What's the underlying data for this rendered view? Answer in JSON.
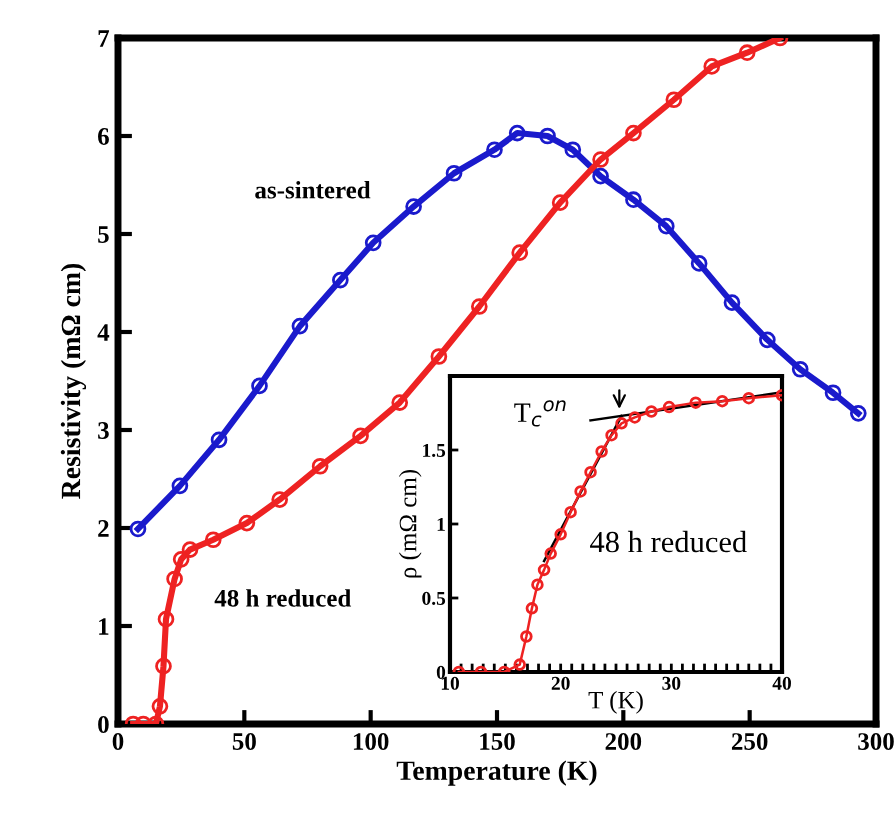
{
  "chart_data": [
    {
      "type": "line",
      "xlabel": "Temperature (K)",
      "ylabel": "Resistivity (mΩ cm)",
      "xlim": [
        0,
        300
      ],
      "xticks": [
        0,
        50,
        100,
        150,
        200,
        250,
        300
      ],
      "ylim": [
        0,
        7
      ],
      "yticks": [
        0,
        1,
        2,
        3,
        4,
        5,
        6,
        7
      ],
      "grid": false,
      "legend": false,
      "marker": "circle",
      "series": [
        {
          "name": "as-sintered",
          "color": "#1a1acc",
          "x": [
            7.9,
            24.5,
            40,
            56,
            72,
            88,
            101,
            117,
            133,
            149,
            158,
            170,
            180,
            191,
            204,
            217,
            230,
            243,
            257,
            270,
            283,
            293
          ],
          "values": [
            1.99,
            2.43,
            2.9,
            3.45,
            4.06,
            4.53,
            4.91,
            5.28,
            5.62,
            5.86,
            6.03,
            6.0,
            5.86,
            5.59,
            5.35,
            5.08,
            4.7,
            4.3,
            3.92,
            3.62,
            3.38,
            3.17
          ]
        },
        {
          "name": "48 h reduced",
          "color": "#ee2222",
          "x": [
            6,
            10,
            15,
            16.6,
            18,
            19,
            22.4,
            25,
            28.5,
            37.7,
            51,
            64,
            80,
            96,
            111.5,
            127,
            143,
            159,
            175,
            191,
            204,
            220,
            235,
            249,
            262
          ],
          "values": [
            0,
            0,
            0,
            0.18,
            0.59,
            1.07,
            1.48,
            1.68,
            1.78,
            1.88,
            2.05,
            2.29,
            2.63,
            2.94,
            3.28,
            3.75,
            4.26,
            4.81,
            5.32,
            5.76,
            6.03,
            6.37,
            6.71,
            6.85,
            7.0
          ]
        }
      ]
    },
    {
      "type": "line",
      "xlabel": "T (K)",
      "ylabel": "ρ (mΩ cm)",
      "xlim": [
        10,
        40
      ],
      "ylim": [
        0,
        2
      ],
      "yticks": [
        0,
        0.5,
        1,
        1.5
      ],
      "grid": false,
      "legend": false,
      "xticks": [
        10,
        {
          "value": 11,
          "label": null
        },
        {
          "value": 12,
          "label": null
        },
        {
          "value": 13,
          "label": null
        },
        {
          "value": 14,
          "label": null
        },
        {
          "value": 15,
          "label": null
        },
        {
          "value": 16,
          "label": null
        },
        {
          "value": 17,
          "label": null
        },
        {
          "value": 18,
          "label": null
        },
        {
          "value": 19,
          "label": null
        },
        20,
        {
          "value": 21,
          "label": null
        },
        {
          "value": 22,
          "label": null
        },
        {
          "value": 23,
          "label": null
        },
        {
          "value": 24,
          "label": null
        },
        {
          "value": 25,
          "label": null
        },
        {
          "value": 26,
          "label": null
        },
        {
          "value": 27,
          "label": null
        },
        {
          "value": 28,
          "label": null
        },
        {
          "value": 29,
          "label": null
        },
        30,
        {
          "value": 31,
          "label": null
        },
        {
          "value": 32,
          "label": null
        },
        {
          "value": 33,
          "label": null
        },
        {
          "value": 34,
          "label": null
        },
        {
          "value": 35,
          "label": null
        },
        {
          "value": 36,
          "label": null
        },
        {
          "value": 37,
          "label": null
        },
        {
          "value": 38,
          "label": null
        },
        {
          "value": 39,
          "label": null
        },
        40
      ],
      "annotations": [
        {
          "text": "T$_{c}$$^{on}$",
          "x": 25.3,
          "y": 1.74
        }
      ],
      "series": [
        {
          "name": "48 h reduced",
          "color": "#ee2222",
          "marker": "circle",
          "x": [
            10.8,
            12.8,
            14.9,
            16.3,
            16.9,
            17.4,
            17.9,
            18.5,
            19.1,
            20,
            20.9,
            21.8,
            22.7,
            23.7,
            24.6,
            25.5,
            26.7,
            28.2,
            29.8,
            32.2,
            34.6,
            37,
            40
          ],
          "values": [
            0,
            0,
            0,
            0.05,
            0.24,
            0.43,
            0.59,
            0.69,
            0.8,
            0.93,
            1.08,
            1.22,
            1.35,
            1.49,
            1.6,
            1.68,
            1.72,
            1.76,
            1.79,
            1.82,
            1.83,
            1.85,
            1.87
          ]
        },
        {
          "color": "#000000",
          "marker": "none",
          "x": [
            18.5,
            25.5
          ],
          "values": [
            0.75,
            1.73
          ]
        },
        {
          "color": "#000000",
          "marker": "none",
          "x": [
            22.7,
            40
          ],
          "values": [
            1.7,
            1.89
          ]
        }
      ]
    }
  ]
}
